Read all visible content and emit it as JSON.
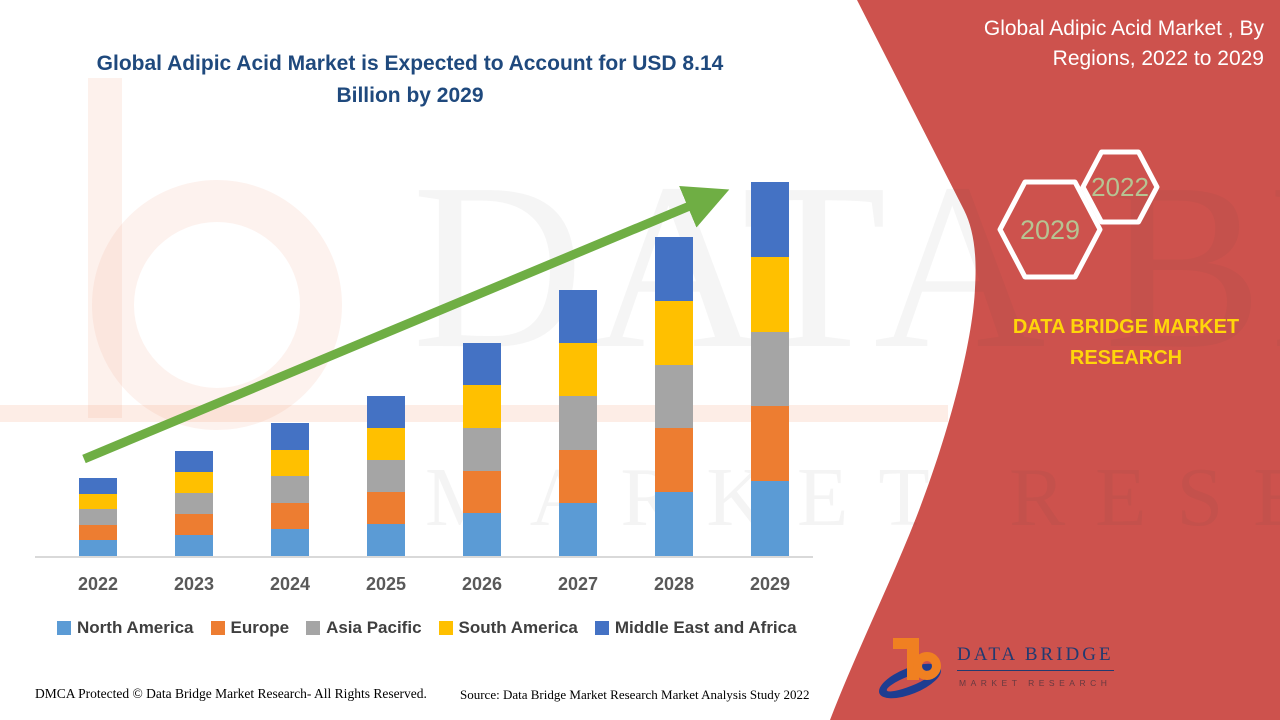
{
  "title": {
    "lines": [
      "Global Adipic Acid Market is Expected to Account for USD 8.14",
      "Billion by 2029"
    ],
    "color": "#1f497d"
  },
  "panel": {
    "heading_lines": [
      "Global Adipic Acid Market , By",
      "Regions, 2022 to 2029"
    ],
    "background_color": "#cd524d",
    "hexagons": {
      "back": {
        "year": "2022"
      },
      "front": {
        "year": "2029"
      },
      "text_color": "#b6c492",
      "border_color": "#ffffff"
    },
    "brand_name": "DATA BRIDGE MARKET RESEARCH",
    "brand_color": "#ffd60a"
  },
  "watermark": {
    "big_text": "DATA BRIDGE",
    "sub_text": "MARKET RESEARCH"
  },
  "logo": {
    "name": "DATA BRIDGE",
    "tagline": "MARKET RESEARCH",
    "orange": "#f08021",
    "navy": "#1d3d91"
  },
  "footer": {
    "dmca": "DMCA Protected © Data Bridge Market Research- All Rights Reserved.",
    "source": "Source: Data Bridge Market Research Market Analysis Study 2022"
  },
  "chart_data": {
    "type": "bar",
    "stacked": true,
    "unit": "USD Billion",
    "categories": [
      "2022",
      "2023",
      "2024",
      "2025",
      "2026",
      "2027",
      "2028",
      "2029"
    ],
    "series": [
      {
        "name": "North America",
        "color": "#5b9bd5",
        "values": [
          0.34,
          0.46,
          0.58,
          0.7,
          0.93,
          1.16,
          1.39,
          1.63
        ]
      },
      {
        "name": "Europe",
        "color": "#ed7d31",
        "values": [
          0.34,
          0.46,
          0.58,
          0.7,
          0.93,
          1.16,
          1.39,
          1.63
        ]
      },
      {
        "name": "Asia Pacific",
        "color": "#a5a5a5",
        "values": [
          0.34,
          0.46,
          0.58,
          0.7,
          0.93,
          1.16,
          1.39,
          1.63
        ]
      },
      {
        "name": "South America",
        "color": "#ffc000",
        "values": [
          0.34,
          0.46,
          0.58,
          0.7,
          0.93,
          1.16,
          1.39,
          1.63
        ]
      },
      {
        "name": "Middle East and Africa",
        "color": "#4472c4",
        "values": [
          0.34,
          0.46,
          0.58,
          0.7,
          0.93,
          1.16,
          1.39,
          1.62
        ]
      }
    ],
    "totals": [
      1.7,
      2.3,
      2.9,
      3.5,
      4.65,
      5.8,
      6.95,
      8.14
    ],
    "ylim": [
      0,
      8.8
    ],
    "grid": false,
    "legend_position": "bottom",
    "trend_arrow": {
      "color": "#6fae44",
      "direction": "up",
      "from_year": "2022",
      "to_year": "2029"
    },
    "axis_line_color": "#d9d9d9"
  }
}
